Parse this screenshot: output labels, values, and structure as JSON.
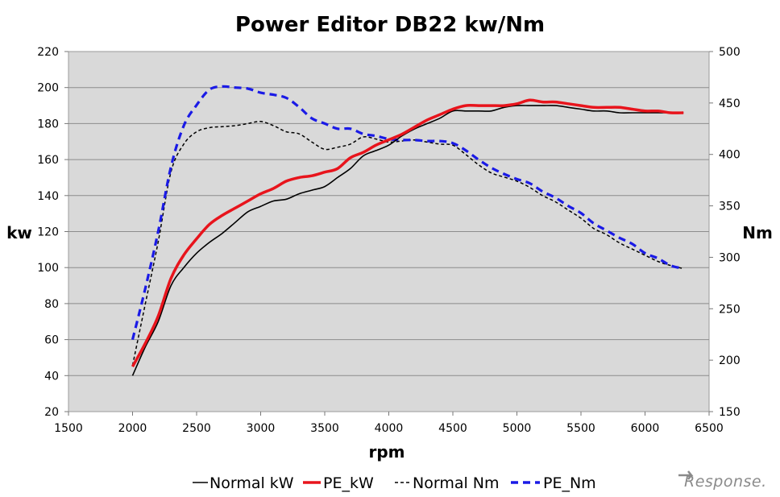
{
  "chart_data": {
    "type": "line",
    "title": "Power Editor DB22 kw/Nm",
    "xlabel": "rpm",
    "ylabel_left": "kw",
    "ylabel_right": "Nm",
    "xlim": [
      1500,
      6500
    ],
    "ylim_left": [
      20,
      220
    ],
    "ylim_right": [
      150,
      500
    ],
    "x_ticks": [
      "1500",
      "2000",
      "2500",
      "3000",
      "3500",
      "4000",
      "4500",
      "5000",
      "5500",
      "6000",
      "6500"
    ],
    "y_left_ticks": [
      "20",
      "40",
      "60",
      "80",
      "100",
      "120",
      "140",
      "160",
      "180",
      "200",
      "220"
    ],
    "y_right_ticks": [
      "150",
      "200",
      "250",
      "300",
      "350",
      "400",
      "450",
      "500"
    ],
    "grid": true,
    "legend_position": "bottom",
    "series": [
      {
        "name": "Normal kW",
        "axis": "left",
        "color": "#000000",
        "style": "solid",
        "x": [
          2000,
          2100,
          2200,
          2300,
          2400,
          2500,
          2600,
          2700,
          2800,
          2900,
          3000,
          3100,
          3200,
          3300,
          3400,
          3500,
          3600,
          3700,
          3800,
          3900,
          4000,
          4100,
          4200,
          4300,
          4400,
          4500,
          4600,
          4700,
          4800,
          4900,
          5000,
          5100,
          5200,
          5300,
          5400,
          5500,
          5600,
          5700,
          5800,
          5900,
          6000,
          6100,
          6200,
          6300
        ],
        "values": [
          40,
          56,
          70,
          90,
          100,
          108,
          114,
          119,
          125,
          131,
          134,
          137,
          138,
          141,
          143,
          145,
          150,
          155,
          162,
          165,
          168,
          173,
          177,
          180,
          183,
          187,
          187,
          187,
          187,
          189,
          190,
          190,
          190,
          190,
          189,
          188,
          187,
          187,
          186,
          186,
          186,
          186,
          186,
          186
        ]
      },
      {
        "name": "PE_kW",
        "axis": "left",
        "color": "#e8141c",
        "style": "solid",
        "x": [
          2000,
          2100,
          2200,
          2300,
          2400,
          2500,
          2600,
          2700,
          2800,
          2900,
          3000,
          3100,
          3200,
          3300,
          3400,
          3500,
          3600,
          3700,
          3800,
          3900,
          4000,
          4100,
          4200,
          4300,
          4400,
          4500,
          4600,
          4700,
          4800,
          4900,
          5000,
          5100,
          5200,
          5300,
          5400,
          5500,
          5600,
          5700,
          5800,
          5900,
          6000,
          6100,
          6200,
          6300
        ],
        "values": [
          45,
          58,
          73,
          94,
          107,
          116,
          124,
          129,
          133,
          137,
          141,
          144,
          148,
          150,
          151,
          153,
          155,
          161,
          164,
          168,
          171,
          174,
          178,
          182,
          185,
          188,
          190,
          190,
          190,
          190,
          191,
          193,
          192,
          192,
          191,
          190,
          189,
          189,
          189,
          188,
          187,
          187,
          186,
          186
        ]
      },
      {
        "name": "Normal Nm",
        "axis": "right",
        "color": "#000000",
        "style": "dashed",
        "x": [
          2000,
          2100,
          2200,
          2300,
          2400,
          2500,
          2600,
          2700,
          2800,
          2900,
          3000,
          3100,
          3200,
          3300,
          3400,
          3500,
          3600,
          3700,
          3800,
          3900,
          4000,
          4100,
          4200,
          4300,
          4400,
          4500,
          4600,
          4700,
          4800,
          4900,
          5000,
          5100,
          5200,
          5300,
          5400,
          5500,
          5600,
          5700,
          5800,
          5900,
          6000,
          6100,
          6200,
          6300
        ],
        "values": [
          195,
          255,
          315,
          383,
          410,
          422,
          426,
          427,
          428,
          430,
          432,
          428,
          422,
          420,
          412,
          405,
          407,
          410,
          417,
          415,
          412,
          413,
          414,
          412,
          410,
          409,
          400,
          390,
          382,
          378,
          374,
          368,
          360,
          354,
          346,
          338,
          328,
          322,
          314,
          308,
          302,
          296,
          292,
          289
        ]
      },
      {
        "name": "PE_Nm",
        "axis": "right",
        "color": "#1a1ae6",
        "style": "dashed",
        "x": [
          2000,
          2100,
          2200,
          2300,
          2400,
          2500,
          2600,
          2700,
          2800,
          2900,
          3000,
          3100,
          3200,
          3300,
          3400,
          3500,
          3600,
          3700,
          3800,
          3900,
          4000,
          4100,
          4200,
          4300,
          4400,
          4500,
          4600,
          4700,
          4800,
          4900,
          5000,
          5100,
          5200,
          5300,
          5400,
          5500,
          5600,
          5700,
          5800,
          5900,
          6000,
          6100,
          6200,
          6300
        ],
        "values": [
          220,
          270,
          325,
          388,
          428,
          448,
          463,
          466,
          465,
          464,
          460,
          458,
          455,
          446,
          435,
          430,
          425,
          425,
          420,
          418,
          415,
          414,
          414,
          413,
          413,
          411,
          404,
          395,
          387,
          381,
          376,
          372,
          364,
          358,
          350,
          343,
          333,
          326,
          319,
          313,
          304,
          299,
          292,
          289
        ]
      }
    ]
  },
  "watermark": {
    "text": "Response."
  }
}
